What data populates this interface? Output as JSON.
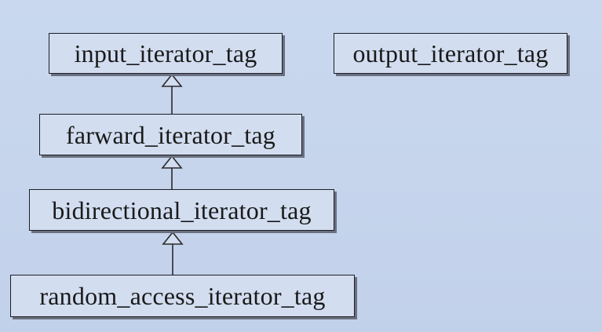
{
  "diagram": {
    "nodes": {
      "input": "input_iterator_tag",
      "output": "output_iterator_tag",
      "forward": "farward_iterator_tag",
      "bidirectional": "bidirectional_iterator_tag",
      "random_access": "random_access_iterator_tag"
    },
    "edges": [
      {
        "from": "forward",
        "to": "input",
        "kind": "inheritance"
      },
      {
        "from": "bidirectional",
        "to": "forward",
        "kind": "inheritance"
      },
      {
        "from": "random_access",
        "to": "bidirectional",
        "kind": "inheritance"
      }
    ]
  }
}
